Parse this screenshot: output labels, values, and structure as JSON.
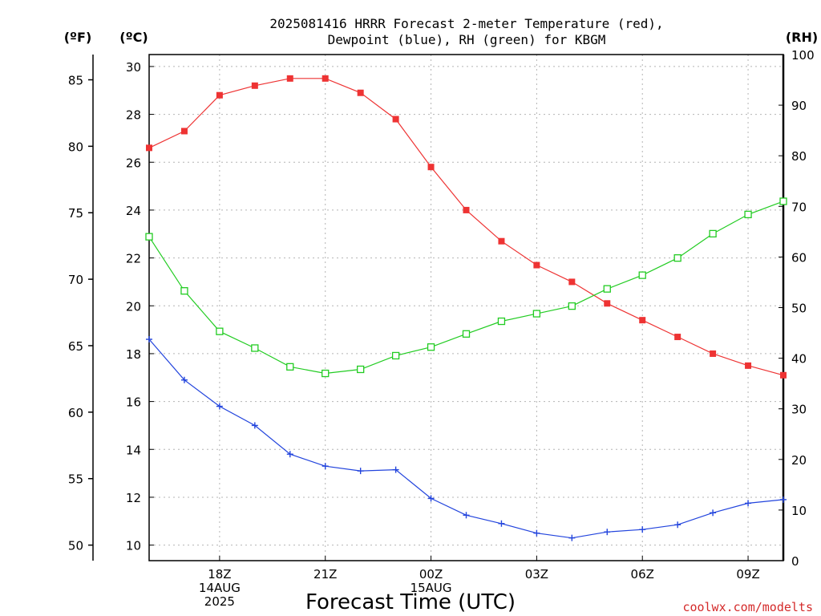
{
  "chart_data": {
    "type": "line",
    "title_lines": [
      "2025081416 HRRR Forecast 2-meter Temperature (red),",
      "Dewpoint (blue), RH (green) for KBGM"
    ],
    "xlabel": "Forecast Time (UTC)",
    "unit_labels": {
      "fahrenheit": "(ºF)",
      "celsius": "(ºC)",
      "rh": "(RH)"
    },
    "x_ticks": [
      {
        "x": 18,
        "lines": [
          "18Z",
          "14AUG",
          "2025"
        ]
      },
      {
        "x": 21,
        "lines": [
          "21Z"
        ]
      },
      {
        "x": 24,
        "lines": [
          "00Z",
          "15AUG"
        ]
      },
      {
        "x": 27,
        "lines": [
          "03Z"
        ]
      },
      {
        "x": 30,
        "lines": [
          "06Z"
        ]
      },
      {
        "x": 33,
        "lines": [
          "09Z"
        ]
      }
    ],
    "xlim": [
      16,
      34
    ],
    "hours": [
      16,
      17,
      18,
      19,
      20,
      21,
      22,
      23,
      24,
      25,
      26,
      27,
      28,
      29,
      30,
      31,
      32,
      33,
      34
    ],
    "celsius_axis": {
      "ylim": [
        9.35,
        30.5
      ],
      "ticks": [
        10,
        12,
        14,
        16,
        18,
        20,
        22,
        24,
        26,
        28,
        30
      ]
    },
    "fahrenheit_axis": {
      "ticks": [
        50,
        55,
        60,
        65,
        70,
        75,
        80,
        85
      ]
    },
    "rh_axis": {
      "ylim": [
        0,
        100
      ],
      "ticks": [
        0,
        10,
        20,
        30,
        40,
        50,
        60,
        70,
        80,
        90,
        100
      ]
    },
    "grid": true,
    "series": [
      {
        "key": "temperature",
        "axis": "celsius",
        "color": "#ee3333",
        "marker": "filled-square",
        "values": [
          26.6,
          27.3,
          28.8,
          29.2,
          29.5,
          29.5,
          28.9,
          27.8,
          25.8,
          24.0,
          22.7,
          21.7,
          21.0,
          20.1,
          19.4,
          18.7,
          18.0,
          17.5,
          17.1
        ]
      },
      {
        "key": "dewpoint",
        "axis": "celsius",
        "color": "#2244dd",
        "marker": "plus",
        "values": [
          18.6,
          16.9,
          15.8,
          15.0,
          13.8,
          13.3,
          13.1,
          13.15,
          11.95,
          11.25,
          10.9,
          10.5,
          10.3,
          10.55,
          10.65,
          10.85,
          11.35,
          11.75,
          11.9
        ]
      },
      {
        "key": "rh",
        "axis": "rh",
        "color": "#22cc22",
        "marker": "open-square",
        "values": [
          64,
          53.3,
          45.3,
          42,
          38.3,
          37,
          37.8,
          40.5,
          42.2,
          44.8,
          47.3,
          48.8,
          50.3,
          53.7,
          56.4,
          59.8,
          64.6,
          68.4,
          71
        ]
      }
    ]
  },
  "credit": "coolwx.com/modelts"
}
